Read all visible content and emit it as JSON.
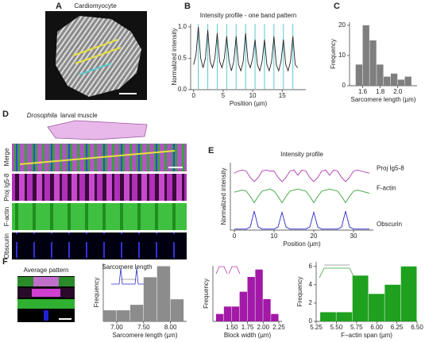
{
  "figure": {
    "panel_letters": [
      "A",
      "B",
      "C",
      "D",
      "E",
      "F"
    ],
    "cell_title": "Cardiomyocyte",
    "muscle_species": "Drosophila",
    "muscle_title": "larval muscle",
    "channels": [
      "Merge",
      "Proj Ig5-8",
      "F-actin",
      "Obscurin"
    ],
    "average_title": "Average pattern"
  },
  "chart_data": [
    {
      "type": "line",
      "title": "Intensity profile - one band pattern",
      "xlabel": "Position (µm)",
      "ylabel": "Normalized intensity",
      "color": "#222222",
      "x": [
        0,
        0.4,
        0.8,
        1.2,
        1.6,
        2.0,
        2.4,
        2.8,
        3.2,
        3.6,
        4.0,
        4.4,
        4.8,
        5.2,
        5.6,
        6.0,
        6.4,
        6.8,
        7.2,
        7.6,
        8.0,
        8.4,
        8.8,
        9.2,
        9.6,
        10.0,
        10.4,
        10.8,
        11.2,
        11.6,
        12.0,
        12.4,
        12.8,
        13.2,
        13.6,
        14.0,
        14.4,
        14.8,
        15.2,
        15.6,
        16.0,
        16.4,
        16.8,
        17.2,
        17.6
      ],
      "values": [
        0.4,
        0.55,
        1.0,
        0.5,
        0.35,
        0.5,
        0.95,
        0.45,
        0.35,
        0.5,
        0.9,
        0.45,
        0.35,
        0.5,
        0.85,
        0.45,
        0.3,
        0.45,
        0.85,
        0.4,
        0.3,
        0.45,
        0.9,
        0.45,
        0.35,
        0.5,
        0.8,
        0.4,
        0.3,
        0.45,
        0.8,
        0.4,
        0.3,
        0.45,
        0.85,
        0.4,
        0.3,
        0.45,
        0.8,
        0.4,
        0.3,
        0.45,
        0.85,
        0.4,
        0.35
      ],
      "vlines": [
        0.8,
        2.4,
        4.0,
        5.6,
        7.2,
        8.8,
        10.4,
        12.0,
        13.6,
        15.2,
        16.8
      ],
      "vline_color": "#5bc8d0",
      "xlim": [
        -0.5,
        19
      ],
      "xticks": [
        0,
        5,
        10,
        15
      ],
      "ylim": [
        0,
        1.05
      ],
      "yticks": [
        {
          "value": 0,
          "label": "0.0"
        },
        {
          "value": 0.5,
          "label": "0.5"
        },
        {
          "value": 1,
          "label": "1.0"
        }
      ]
    },
    {
      "type": "histogram",
      "xlabel": "Sarcomere length (µm)",
      "ylabel": "Frequency",
      "color": "#7f7f7f",
      "bins": [
        1.52,
        1.6,
        1.68,
        1.76,
        1.84,
        1.92,
        2.0,
        2.08,
        2.16
      ],
      "values": [
        7,
        20,
        15,
        7,
        3,
        4,
        2,
        3
      ],
      "xlim": [
        1.45,
        2.22
      ],
      "xticks": [
        1.6,
        1.8,
        {
          "value": 2,
          "label": "2.0"
        }
      ],
      "ylim": [
        0,
        21
      ],
      "yticks": [
        0,
        10,
        20
      ]
    },
    {
      "type": "line",
      "title": "Intensity profile",
      "xlabel": "Position (µm)",
      "ylabel": "Normalized intensity",
      "x": [
        0,
        1,
        2,
        3,
        4,
        5,
        6,
        7,
        8,
        9,
        10,
        11,
        12,
        13,
        14,
        15,
        16,
        17,
        18,
        19,
        20,
        21,
        22,
        23,
        24,
        25,
        26,
        27,
        28,
        29,
        30,
        31,
        32,
        33,
        34
      ],
      "series": [
        {
          "name": "Proj Ig5-8",
          "color": "#b03ab5",
          "values": [
            2.7,
            2.8,
            2.85,
            2.8,
            2.5,
            2.3,
            2.5,
            2.8,
            2.85,
            2.8,
            2.8,
            2.5,
            2.3,
            2.5,
            2.8,
            2.85,
            2.6,
            2.85,
            2.8,
            2.5,
            2.3,
            2.5,
            2.8,
            2.85,
            2.6,
            2.85,
            2.8,
            2.5,
            2.3,
            2.5,
            2.8,
            2.85,
            2.8,
            2.75,
            2.7
          ]
        },
        {
          "name": "F-actin",
          "color": "#3aa03a",
          "values": [
            1.8,
            1.85,
            1.9,
            1.85,
            1.6,
            1.3,
            1.6,
            1.85,
            1.9,
            1.95,
            1.85,
            1.6,
            1.3,
            1.6,
            1.85,
            1.9,
            1.95,
            1.9,
            1.85,
            1.6,
            1.3,
            1.6,
            1.85,
            1.9,
            1.95,
            1.9,
            1.85,
            1.6,
            1.3,
            1.6,
            1.85,
            1.9,
            1.85,
            1.8,
            1.75
          ]
        },
        {
          "name": "Obscurin",
          "color": "#2b2bc8",
          "values": [
            0.05,
            0.05,
            0.05,
            0.05,
            0.15,
            0.9,
            0.15,
            0.05,
            0.05,
            0.05,
            0.05,
            0.15,
            0.85,
            0.15,
            0.05,
            0.05,
            0.05,
            0.05,
            0.05,
            0.15,
            0.85,
            0.15,
            0.05,
            0.05,
            0.05,
            0.05,
            0.05,
            0.15,
            0.9,
            0.15,
            0.05,
            0.05,
            0.05,
            0.05,
            0.05
          ]
        }
      ],
      "xlim": [
        -1,
        35
      ],
      "xticks": [
        0,
        10,
        20,
        30
      ],
      "ylim": [
        0,
        3.2
      ]
    },
    {
      "type": "histogram",
      "xlabel": "Sarcomere length (µm)",
      "ylabel": "Frequency",
      "inset_label": "Sarcomere length",
      "color": "#8c8c8c",
      "bins": [
        6.75,
        7.0,
        7.25,
        7.5,
        7.75,
        8.0,
        8.25
      ],
      "values": [
        2,
        2,
        3,
        8,
        10,
        4
      ],
      "xlim": [
        6.75,
        8.3
      ],
      "xticks": [
        {
          "value": 7,
          "label": "7.00"
        },
        {
          "value": 7.5,
          "label": "7.50"
        },
        {
          "value": 8,
          "label": "8.00"
        }
      ],
      "ylim": [
        0,
        10.5
      ]
    },
    {
      "type": "histogram",
      "xlabel": "Block width (µm)",
      "ylabel": "Frequency",
      "color": "#a219a8",
      "bins": [
        1.25,
        1.375,
        1.5,
        1.625,
        1.75,
        1.875,
        2.0,
        2.125,
        2.25
      ],
      "values": [
        1,
        2,
        2,
        4,
        6,
        7,
        3,
        1
      ],
      "xlim": [
        1.2,
        2.3
      ],
      "xticks": [
        {
          "value": 1.5,
          "label": "1.50"
        },
        {
          "value": 1.75,
          "label": "1.75"
        },
        {
          "value": 2,
          "label": "2.00"
        },
        {
          "value": 2.25,
          "label": "2.25"
        }
      ],
      "ylim": [
        0,
        7.5
      ]
    },
    {
      "type": "histogram",
      "xlabel": "F−actin span (µm)",
      "ylabel": "Frequency",
      "color": "#1fa01f",
      "bins": [
        5.3,
        5.5,
        5.7,
        5.9,
        6.1,
        6.3,
        6.5
      ],
      "values": [
        1,
        1,
        5,
        3,
        4,
        6
      ],
      "xlim": [
        5.25,
        6.5
      ],
      "xticks": [
        5.25,
        {
          "value": 5.5,
          "label": "5.50"
        },
        5.75,
        {
          "value": 6,
          "label": "6.00"
        },
        6.25,
        {
          "value": 6.5,
          "label": "6.50"
        }
      ],
      "ylim": [
        0,
        6.5
      ],
      "yticks": [
        0,
        2,
        4,
        6
      ]
    }
  ]
}
